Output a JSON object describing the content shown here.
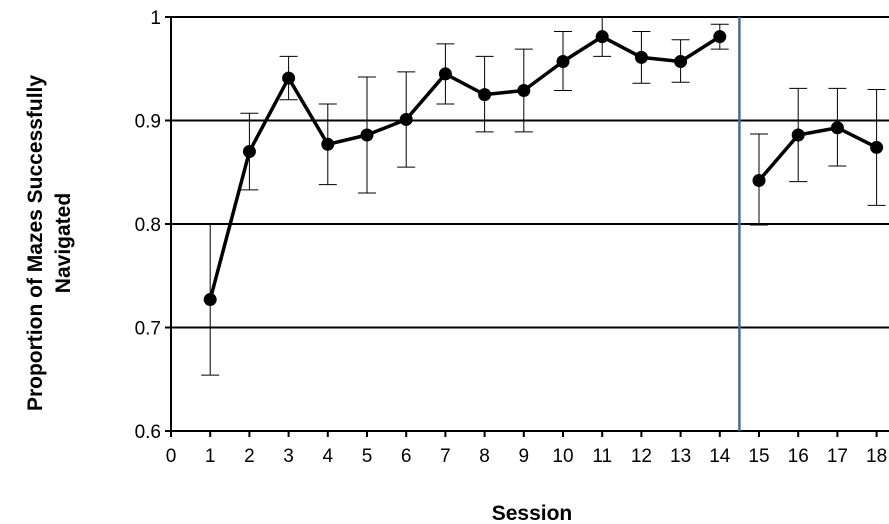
{
  "chart_data": {
    "type": "line",
    "title": "",
    "xlabel": "Session",
    "ylabel": [
      "Proportion of Mazes Successfully",
      "Navigated"
    ],
    "xlim": [
      0,
      18
    ],
    "ylim": [
      0.6,
      1.0
    ],
    "x_ticks": [
      "0",
      "1",
      "2",
      "3",
      "4",
      "5",
      "6",
      "7",
      "8",
      "9",
      "10",
      "11",
      "12",
      "13",
      "14",
      "15",
      "16",
      "17",
      "18"
    ],
    "y_ticks": [
      "0.6",
      "0.7",
      "0.8",
      "0.9",
      "1"
    ],
    "y_tick_values": [
      0.6,
      0.7,
      0.8,
      0.9,
      1.0
    ],
    "grid": "horizontal",
    "divider_x": 14.5,
    "series": [
      {
        "segment": 1,
        "x": [
          1,
          2,
          3,
          4,
          5,
          6,
          7,
          8,
          9,
          10,
          11,
          12,
          13,
          14
        ],
        "y": [
          0.727,
          0.87,
          0.941,
          0.877,
          0.886,
          0.901,
          0.945,
          0.925,
          0.929,
          0.957,
          0.981,
          0.961,
          0.957,
          0.981
        ],
        "err_low": [
          0.654,
          0.833,
          0.92,
          0.838,
          0.83,
          0.855,
          0.916,
          0.889,
          0.889,
          0.929,
          0.962,
          0.936,
          0.937,
          0.969
        ],
        "err_high": [
          0.8,
          0.907,
          0.962,
          0.916,
          0.942,
          0.947,
          0.974,
          0.962,
          0.969,
          0.986,
          1.0,
          0.986,
          0.978,
          0.993
        ]
      },
      {
        "segment": 2,
        "x": [
          15,
          16,
          17,
          18
        ],
        "y": [
          0.842,
          0.886,
          0.893,
          0.874
        ],
        "err_low": [
          0.799,
          0.841,
          0.856,
          0.818
        ],
        "err_high": [
          0.887,
          0.931,
          0.931,
          0.93
        ]
      }
    ],
    "colors": {
      "line": "#000000",
      "divider": "#4a6a9a",
      "grid": "#000000"
    }
  }
}
